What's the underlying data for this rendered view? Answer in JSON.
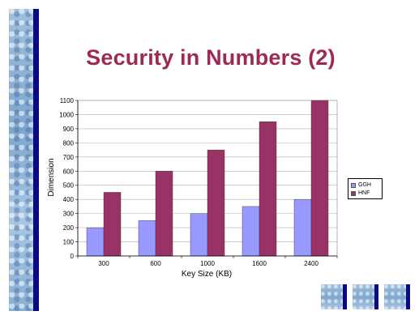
{
  "slide": {
    "title": "Security in Numbers (2)",
    "band_color": "#0a0a82",
    "title_color": "#9c2a55"
  },
  "nav_buttons": [
    {
      "name": "nav-button-1"
    },
    {
      "name": "nav-button-2"
    },
    {
      "name": "nav-button-3"
    }
  ],
  "chart_data": {
    "type": "bar",
    "title": "",
    "xlabel": "Key Size (KB)",
    "ylabel": "Dimension",
    "categories": [
      "300",
      "600",
      "1000",
      "1600",
      "2400"
    ],
    "series": [
      {
        "name": "GGH",
        "values": [
          200,
          250,
          300,
          350,
          400
        ],
        "color": "#9999ff"
      },
      {
        "name": "HNF",
        "values": [
          450,
          600,
          750,
          950,
          1100
        ],
        "color": "#993366"
      }
    ],
    "ylim": [
      0,
      1100
    ],
    "yticks": [
      "0",
      "100",
      "200",
      "300",
      "400",
      "500",
      "600",
      "700",
      "800",
      "900",
      "1000",
      "1100"
    ],
    "grid": true,
    "legend": "right"
  }
}
